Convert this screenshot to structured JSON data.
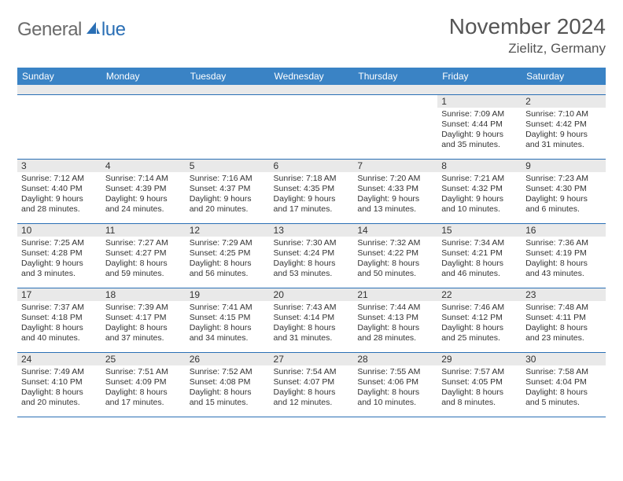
{
  "logo": {
    "part1": "General",
    "part2": "lue"
  },
  "title": "November 2024",
  "location": "Zielitz, Germany",
  "colors": {
    "header_bg": "#3a83c5",
    "rule": "#2a6fb5",
    "gray_bar": "#e9e9e9",
    "text": "#333333",
    "title_text": "#555555"
  },
  "day_headers": [
    "Sunday",
    "Monday",
    "Tuesday",
    "Wednesday",
    "Thursday",
    "Friday",
    "Saturday"
  ],
  "weeks": [
    [
      null,
      null,
      null,
      null,
      null,
      {
        "n": "1",
        "sr": "Sunrise: 7:09 AM",
        "ss": "Sunset: 4:44 PM",
        "dl": "Daylight: 9 hours and 35 minutes."
      },
      {
        "n": "2",
        "sr": "Sunrise: 7:10 AM",
        "ss": "Sunset: 4:42 PM",
        "dl": "Daylight: 9 hours and 31 minutes."
      }
    ],
    [
      {
        "n": "3",
        "sr": "Sunrise: 7:12 AM",
        "ss": "Sunset: 4:40 PM",
        "dl": "Daylight: 9 hours and 28 minutes."
      },
      {
        "n": "4",
        "sr": "Sunrise: 7:14 AM",
        "ss": "Sunset: 4:39 PM",
        "dl": "Daylight: 9 hours and 24 minutes."
      },
      {
        "n": "5",
        "sr": "Sunrise: 7:16 AM",
        "ss": "Sunset: 4:37 PM",
        "dl": "Daylight: 9 hours and 20 minutes."
      },
      {
        "n": "6",
        "sr": "Sunrise: 7:18 AM",
        "ss": "Sunset: 4:35 PM",
        "dl": "Daylight: 9 hours and 17 minutes."
      },
      {
        "n": "7",
        "sr": "Sunrise: 7:20 AM",
        "ss": "Sunset: 4:33 PM",
        "dl": "Daylight: 9 hours and 13 minutes."
      },
      {
        "n": "8",
        "sr": "Sunrise: 7:21 AM",
        "ss": "Sunset: 4:32 PM",
        "dl": "Daylight: 9 hours and 10 minutes."
      },
      {
        "n": "9",
        "sr": "Sunrise: 7:23 AM",
        "ss": "Sunset: 4:30 PM",
        "dl": "Daylight: 9 hours and 6 minutes."
      }
    ],
    [
      {
        "n": "10",
        "sr": "Sunrise: 7:25 AM",
        "ss": "Sunset: 4:28 PM",
        "dl": "Daylight: 9 hours and 3 minutes."
      },
      {
        "n": "11",
        "sr": "Sunrise: 7:27 AM",
        "ss": "Sunset: 4:27 PM",
        "dl": "Daylight: 8 hours and 59 minutes."
      },
      {
        "n": "12",
        "sr": "Sunrise: 7:29 AM",
        "ss": "Sunset: 4:25 PM",
        "dl": "Daylight: 8 hours and 56 minutes."
      },
      {
        "n": "13",
        "sr": "Sunrise: 7:30 AM",
        "ss": "Sunset: 4:24 PM",
        "dl": "Daylight: 8 hours and 53 minutes."
      },
      {
        "n": "14",
        "sr": "Sunrise: 7:32 AM",
        "ss": "Sunset: 4:22 PM",
        "dl": "Daylight: 8 hours and 50 minutes."
      },
      {
        "n": "15",
        "sr": "Sunrise: 7:34 AM",
        "ss": "Sunset: 4:21 PM",
        "dl": "Daylight: 8 hours and 46 minutes."
      },
      {
        "n": "16",
        "sr": "Sunrise: 7:36 AM",
        "ss": "Sunset: 4:19 PM",
        "dl": "Daylight: 8 hours and 43 minutes."
      }
    ],
    [
      {
        "n": "17",
        "sr": "Sunrise: 7:37 AM",
        "ss": "Sunset: 4:18 PM",
        "dl": "Daylight: 8 hours and 40 minutes."
      },
      {
        "n": "18",
        "sr": "Sunrise: 7:39 AM",
        "ss": "Sunset: 4:17 PM",
        "dl": "Daylight: 8 hours and 37 minutes."
      },
      {
        "n": "19",
        "sr": "Sunrise: 7:41 AM",
        "ss": "Sunset: 4:15 PM",
        "dl": "Daylight: 8 hours and 34 minutes."
      },
      {
        "n": "20",
        "sr": "Sunrise: 7:43 AM",
        "ss": "Sunset: 4:14 PM",
        "dl": "Daylight: 8 hours and 31 minutes."
      },
      {
        "n": "21",
        "sr": "Sunrise: 7:44 AM",
        "ss": "Sunset: 4:13 PM",
        "dl": "Daylight: 8 hours and 28 minutes."
      },
      {
        "n": "22",
        "sr": "Sunrise: 7:46 AM",
        "ss": "Sunset: 4:12 PM",
        "dl": "Daylight: 8 hours and 25 minutes."
      },
      {
        "n": "23",
        "sr": "Sunrise: 7:48 AM",
        "ss": "Sunset: 4:11 PM",
        "dl": "Daylight: 8 hours and 23 minutes."
      }
    ],
    [
      {
        "n": "24",
        "sr": "Sunrise: 7:49 AM",
        "ss": "Sunset: 4:10 PM",
        "dl": "Daylight: 8 hours and 20 minutes."
      },
      {
        "n": "25",
        "sr": "Sunrise: 7:51 AM",
        "ss": "Sunset: 4:09 PM",
        "dl": "Daylight: 8 hours and 17 minutes."
      },
      {
        "n": "26",
        "sr": "Sunrise: 7:52 AM",
        "ss": "Sunset: 4:08 PM",
        "dl": "Daylight: 8 hours and 15 minutes."
      },
      {
        "n": "27",
        "sr": "Sunrise: 7:54 AM",
        "ss": "Sunset: 4:07 PM",
        "dl": "Daylight: 8 hours and 12 minutes."
      },
      {
        "n": "28",
        "sr": "Sunrise: 7:55 AM",
        "ss": "Sunset: 4:06 PM",
        "dl": "Daylight: 8 hours and 10 minutes."
      },
      {
        "n": "29",
        "sr": "Sunrise: 7:57 AM",
        "ss": "Sunset: 4:05 PM",
        "dl": "Daylight: 8 hours and 8 minutes."
      },
      {
        "n": "30",
        "sr": "Sunrise: 7:58 AM",
        "ss": "Sunset: 4:04 PM",
        "dl": "Daylight: 8 hours and 5 minutes."
      }
    ]
  ]
}
